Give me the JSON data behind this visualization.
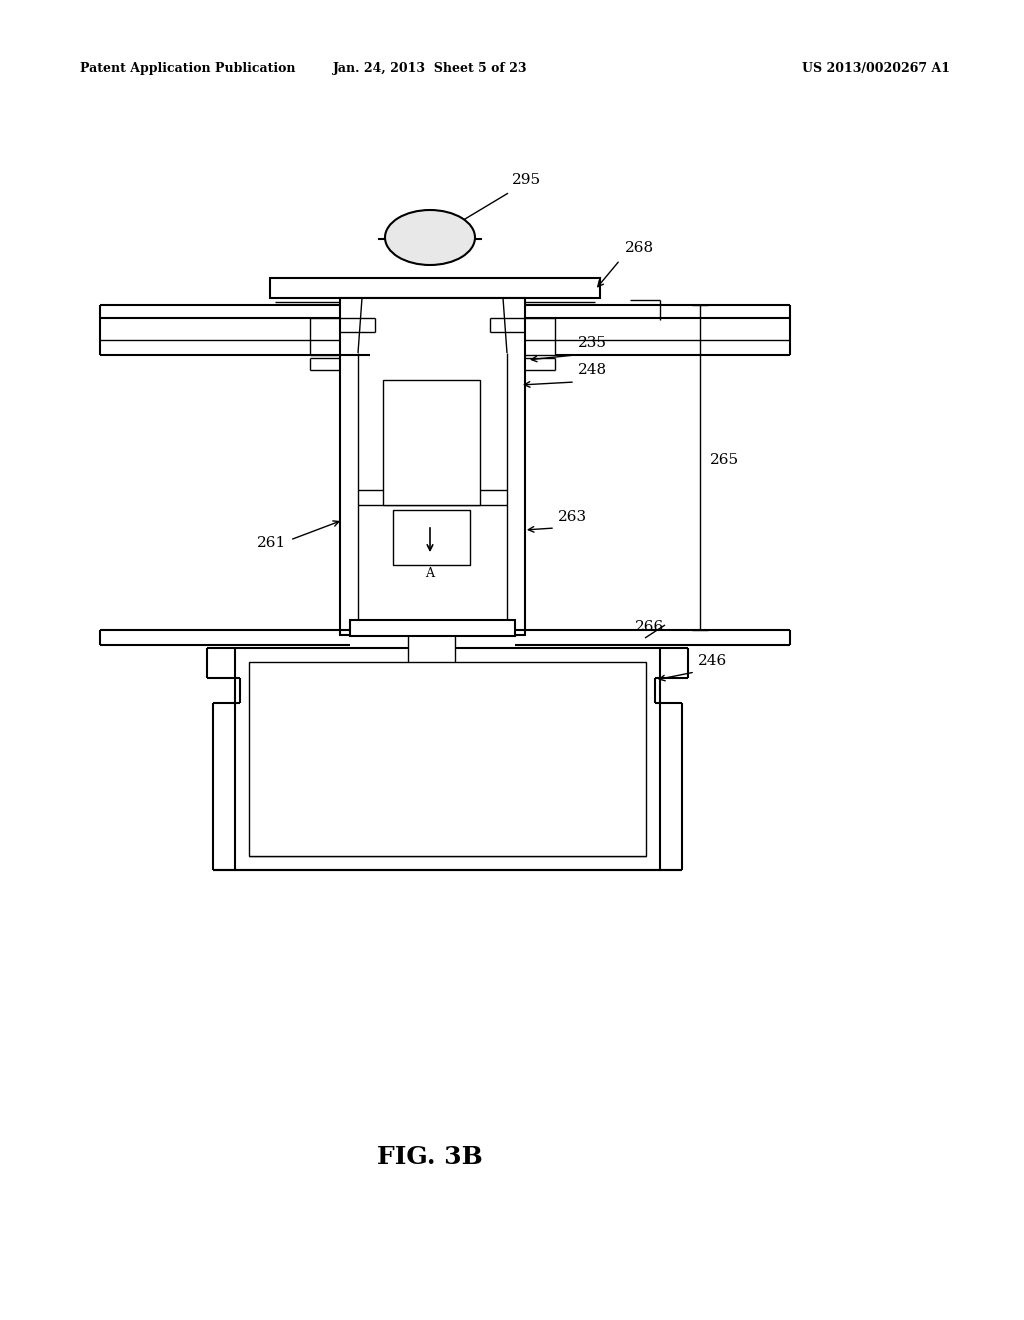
{
  "header_left": "Patent Application Publication",
  "header_center": "Jan. 24, 2013  Sheet 5 of 23",
  "header_right": "US 2013/0020267 A1",
  "background_color": "#ffffff",
  "fig_label": "FIG. 3B"
}
